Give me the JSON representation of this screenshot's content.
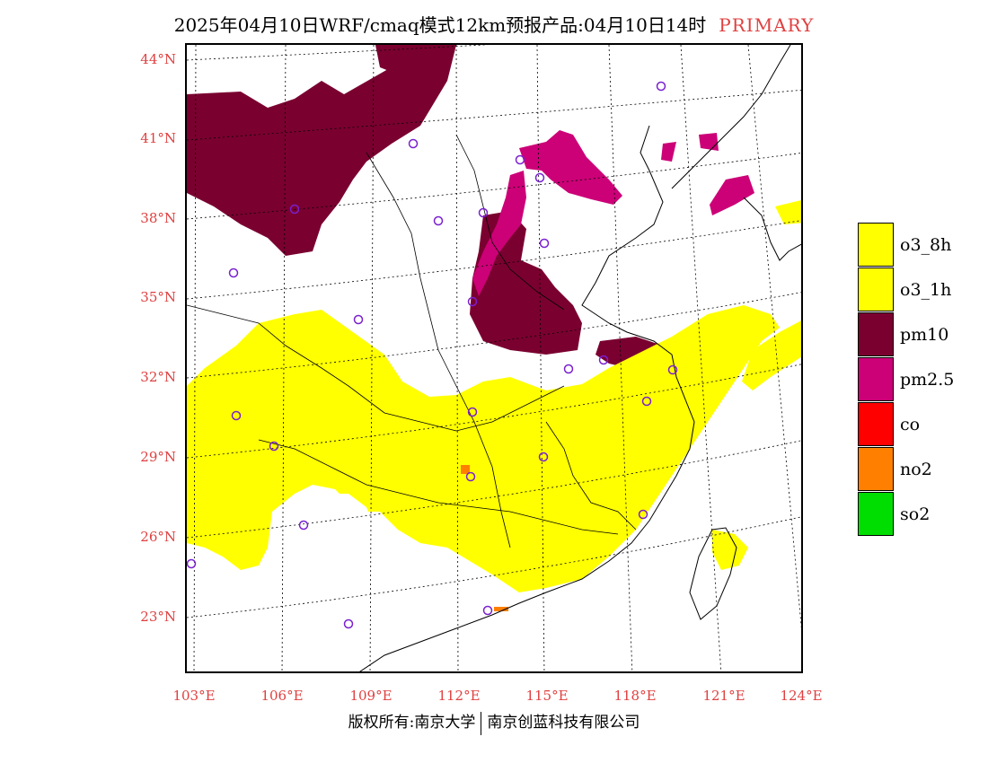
{
  "title": "2025年04月10日WRF/cmaq模式12km预报产品:04月10日14时",
  "title_tag": "PRIMARY",
  "lat_labels": [
    "44°N",
    "41°N",
    "38°N",
    "35°N",
    "32°N",
    "29°N",
    "26°N",
    "23°N"
  ],
  "lon_labels": [
    "103°E",
    "106°E",
    "109°E",
    "112°E",
    "115°E",
    "118°E",
    "121°E",
    "124°E"
  ],
  "legend": [
    {
      "label": "o3_8h",
      "color": "#ffff00"
    },
    {
      "label": "o3_1h",
      "color": "#ffff00"
    },
    {
      "label": "pm10",
      "color": "#7a0030"
    },
    {
      "label": "pm2.5",
      "color": "#cc0077"
    },
    {
      "label": "co",
      "color": "#ff0000"
    },
    {
      "label": "no2",
      "color": "#ff8000"
    },
    {
      "label": "so2",
      "color": "#00dd00"
    }
  ],
  "footer": {
    "left": "版权所有:南京大学",
    "right": "南京创蓝科技有限公司"
  },
  "map": {
    "projection": "Lambert conformal",
    "colors": {
      "o3": "#ffff00",
      "pm10": "#7a0030",
      "pm25": "#cc0077",
      "no2": "#ff8000",
      "station": "#7a20d0"
    }
  }
}
